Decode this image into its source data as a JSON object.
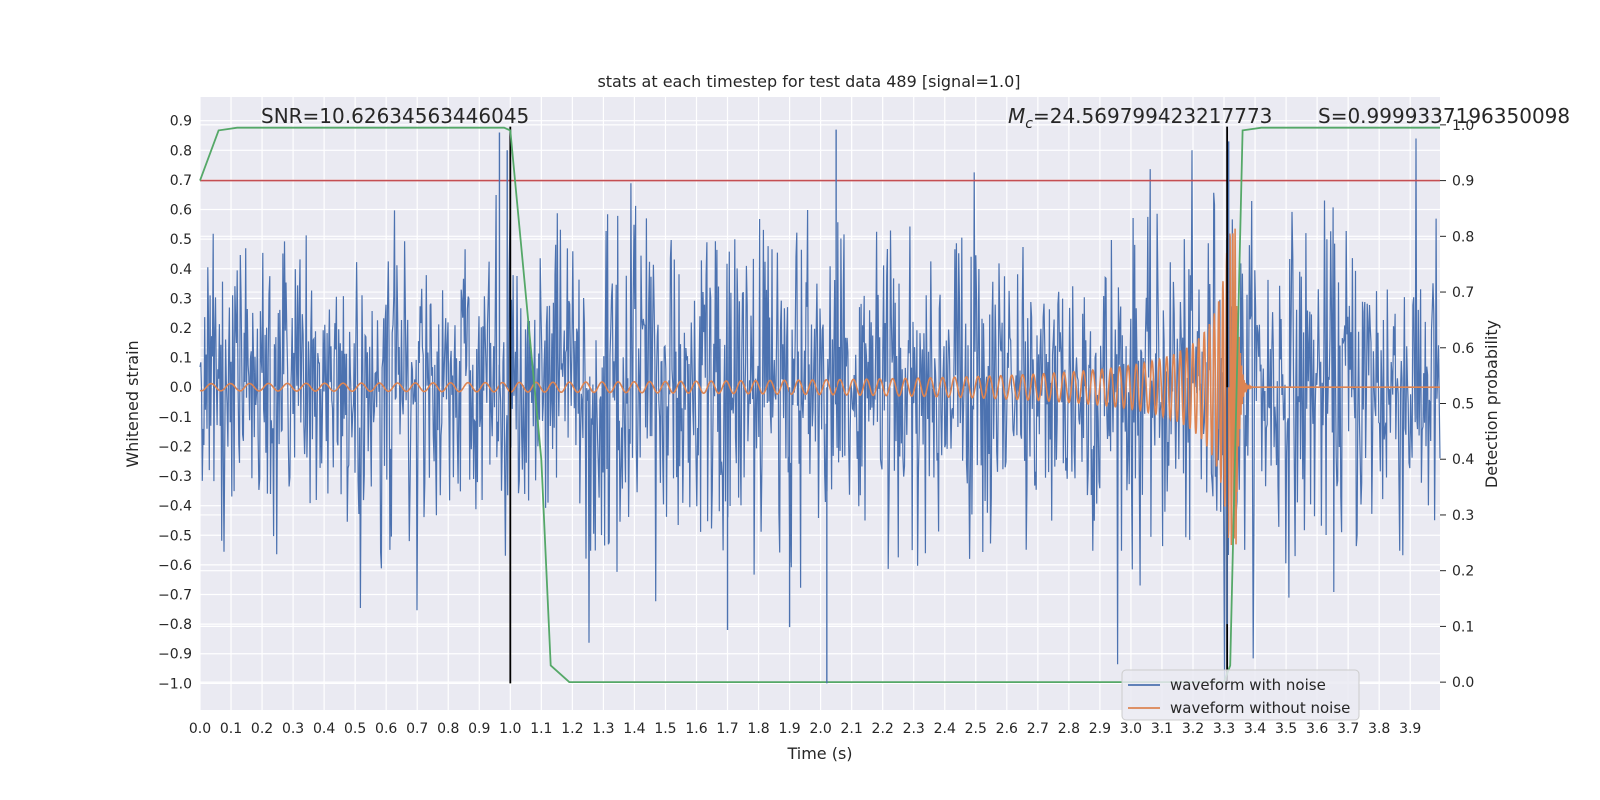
{
  "chart_data": {
    "type": "line",
    "title": "stats at each timestep for test data 489 [signal=1.0]",
    "xlabel": "Time (s)",
    "ylabel": "Whitened strain",
    "y2label": "Detection probability",
    "xlim": [
      0.0,
      3.996
    ],
    "ylim": [
      -1.09,
      0.98
    ],
    "y2lim": [
      -0.05,
      1.05
    ],
    "xticks": [
      0.0,
      0.1,
      0.2,
      0.3,
      0.4,
      0.5,
      0.6,
      0.7,
      0.8,
      0.9,
      1.0,
      1.1,
      1.2,
      1.3,
      1.4,
      1.5,
      1.6,
      1.7,
      1.8,
      1.9,
      2.0,
      2.1,
      2.2,
      2.3,
      2.4,
      2.5,
      2.6,
      2.7,
      2.8,
      2.9,
      3.0,
      3.1,
      3.2,
      3.3,
      3.4,
      3.5,
      3.6,
      3.7,
      3.8,
      3.9
    ],
    "xtick_labels": [
      "0.0",
      "0.1",
      "0.2",
      "0.3",
      "0.4",
      "0.5",
      "0.6",
      "0.7",
      "0.8",
      "0.9",
      "1.0",
      "1.1",
      "1.2",
      "1.3",
      "1.4",
      "1.5",
      "1.6",
      "1.7",
      "1.8",
      "1.9",
      "2.0",
      "2.1",
      "2.2",
      "2.3",
      "2.4",
      "2.5",
      "2.6",
      "2.7",
      "2.8",
      "2.9",
      "3.0",
      "3.1",
      "3.2",
      "3.3",
      "3.4",
      "3.5",
      "3.6",
      "3.7",
      "3.8",
      "3.9"
    ],
    "yticks": [
      -1.0,
      -0.9,
      -0.8,
      -0.7,
      -0.6,
      -0.5,
      -0.4,
      -0.3,
      -0.2,
      -0.1,
      0.0,
      0.1,
      0.2,
      0.3,
      0.4,
      0.5,
      0.6,
      0.7,
      0.8,
      0.9
    ],
    "ytick_labels": [
      "−1.0",
      "−0.9",
      "−0.8",
      "−0.7",
      "−0.6",
      "−0.5",
      "−0.4",
      "−0.3",
      "−0.2",
      "−0.1",
      "0.0",
      "0.1",
      "0.2",
      "0.3",
      "0.4",
      "0.5",
      "0.6",
      "0.7",
      "0.8",
      "0.9"
    ],
    "y2ticks": [
      0.0,
      0.1,
      0.2,
      0.3,
      0.4,
      0.5,
      0.6,
      0.7,
      0.8,
      0.9,
      1.0
    ],
    "y2tick_labels": [
      "0.0",
      "0.1",
      "0.2",
      "0.3",
      "0.4",
      "0.5",
      "0.6",
      "0.7",
      "0.8",
      "0.9",
      "1.0"
    ],
    "annotations": {
      "snr": "SNR=10.62634563446045",
      "mc_symbol": "M",
      "mc_sub": "c",
      "mc_value": "=24.569799423217773",
      "s": "S=0.9999337196350098"
    },
    "series": [
      {
        "name": "waveform with noise",
        "color": "#4c72b0",
        "axis": "left",
        "kind": "noise",
        "std": 0.27,
        "clip_min": -1.0,
        "spikes": [
          [
            0.965,
            0.86
          ],
          [
            0.99,
            0.8
          ],
          [
            2.05,
            0.87
          ],
          [
            2.02,
            -1.0
          ],
          [
            1.7,
            -0.82
          ],
          [
            1.9,
            -0.81
          ],
          [
            3.315,
            0.83
          ],
          [
            3.31,
            -0.8
          ]
        ]
      },
      {
        "name": "waveform without noise",
        "color": "#dd8452",
        "axis": "left",
        "kind": "chirp",
        "t_merger": 3.34,
        "f_start": 16,
        "amp_start": 0.012,
        "amp_peak": 0.54
      },
      {
        "name": "detection probability",
        "color": "#55a868",
        "axis": "right",
        "x": [
          0.0,
          0.06,
          0.12,
          0.98,
          1.0,
          1.1,
          1.13,
          1.19,
          3.3,
          3.32,
          3.36,
          3.42,
          3.996
        ],
        "y": [
          0.9,
          0.99,
          0.995,
          0.995,
          0.99,
          0.4,
          0.03,
          0.0,
          0.0,
          0.03,
          0.99,
          0.995,
          0.995
        ]
      }
    ],
    "threshold": {
      "value": 0.9,
      "axis": "right",
      "color": "#c44e52"
    },
    "vlines": [
      1.0,
      3.31
    ],
    "vline_color": "#000000",
    "legend": {
      "position": "lower-right",
      "entries": [
        "waveform with noise",
        "waveform without noise"
      ]
    }
  }
}
